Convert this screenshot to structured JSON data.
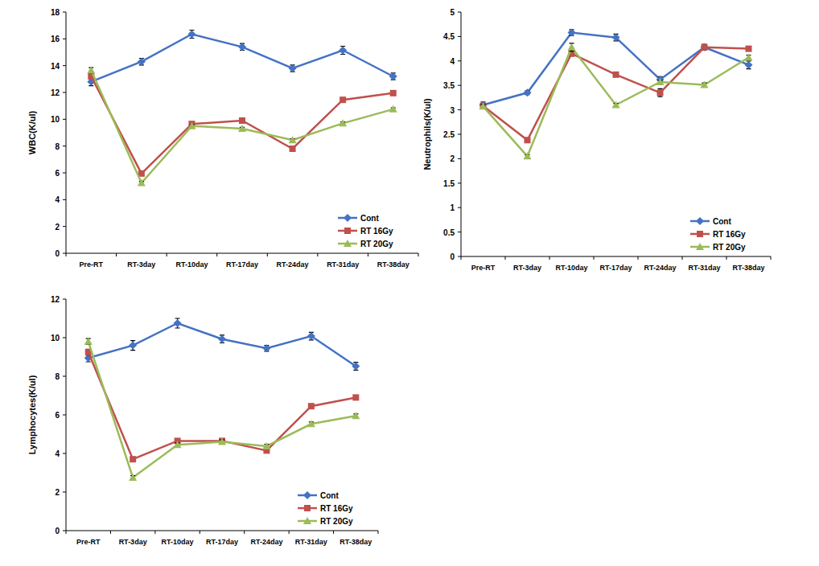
{
  "chart_data": [
    {
      "type": "line",
      "y_label": "WBC(K/ul)",
      "categories": [
        "Pre-RT",
        "RT-3day",
        "RT-10day",
        "RT-17day",
        "RT-24day",
        "RT-31day",
        "RT-38day"
      ],
      "ylim": [
        0,
        18
      ],
      "yticks": [
        0,
        2,
        4,
        6,
        8,
        10,
        12,
        14,
        16,
        18
      ],
      "grid": false,
      "legend": "lower right",
      "series": [
        {
          "name": "Cont",
          "color": "#4472c4",
          "marker": "diamond",
          "values": [
            12.8,
            14.3,
            16.35,
            15.4,
            13.8,
            15.15,
            13.2
          ],
          "errors": [
            0.3,
            0.25,
            0.3,
            0.25,
            0.25,
            0.3,
            0.25
          ]
        },
        {
          "name": "RT 16Gy",
          "color": "#c0504d",
          "marker": "square",
          "values": [
            13.2,
            5.95,
            9.65,
            9.9,
            7.8,
            11.45,
            11.95
          ],
          "errors": [
            0.2,
            0.15,
            0.15,
            0.15,
            0.15,
            0.15,
            0.15
          ]
        },
        {
          "name": "RT 20Gy",
          "color": "#9bbb59",
          "marker": "triangle",
          "values": [
            13.65,
            5.25,
            9.5,
            9.3,
            8.45,
            9.7,
            10.75
          ],
          "errors": [
            0.2,
            0.1,
            0.1,
            0.1,
            0.1,
            0.1,
            0.1
          ]
        }
      ]
    },
    {
      "type": "line",
      "y_label": "Neutrophils(K/ul)",
      "categories": [
        "Pre-RT",
        "RT-3day",
        "RT-10day",
        "RT-17day",
        "RT-24day",
        "RT-31day",
        "RT-38day"
      ],
      "ylim": [
        0,
        5
      ],
      "yticks": [
        0,
        0.5,
        1,
        1.5,
        2,
        2.5,
        3,
        3.5,
        4,
        4.5,
        5
      ],
      "grid": false,
      "legend": "lower right",
      "series": [
        {
          "name": "Cont",
          "color": "#4472c4",
          "marker": "diamond",
          "values": [
            3.1,
            3.35,
            4.58,
            4.48,
            3.62,
            4.28,
            3.92
          ],
          "errors": [
            0.06,
            0.04,
            0.06,
            0.07,
            0.06,
            0.06,
            0.08
          ]
        },
        {
          "name": "RT 16Gy",
          "color": "#c0504d",
          "marker": "square",
          "values": [
            3.08,
            2.38,
            4.15,
            3.72,
            3.35,
            4.28,
            4.25
          ],
          "errors": [
            0.04,
            0.04,
            0.05,
            0.04,
            0.08,
            0.05,
            0.04
          ]
        },
        {
          "name": "RT 20Gy",
          "color": "#9bbb59",
          "marker": "triangle",
          "values": [
            3.07,
            2.05,
            4.28,
            3.1,
            3.57,
            3.51,
            4.07
          ],
          "errors": [
            0.04,
            0.03,
            0.08,
            0.03,
            0.03,
            0.04,
            0.05
          ]
        }
      ]
    },
    {
      "type": "line",
      "y_label": "Lymphocytes(K/ul)",
      "categories": [
        "Pre-RT",
        "RT-3day",
        "RT-10day",
        "RT-17day",
        "RT-24day",
        "RT-31day",
        "RT-38day"
      ],
      "ylim": [
        0,
        12
      ],
      "yticks": [
        0,
        2,
        4,
        6,
        8,
        10,
        12
      ],
      "grid": false,
      "legend": "lower right",
      "series": [
        {
          "name": "Cont",
          "color": "#4472c4",
          "marker": "diamond",
          "values": [
            8.95,
            9.6,
            10.75,
            9.93,
            9.45,
            10.08,
            8.52
          ],
          "errors": [
            0.2,
            0.25,
            0.25,
            0.2,
            0.15,
            0.2,
            0.2
          ]
        },
        {
          "name": "RT 16Gy",
          "color": "#c0504d",
          "marker": "square",
          "values": [
            9.25,
            3.7,
            4.65,
            4.65,
            4.15,
            6.45,
            6.9
          ],
          "errors": [
            0.15,
            0.1,
            0.1,
            0.1,
            0.1,
            0.1,
            0.1
          ]
        },
        {
          "name": "RT 20Gy",
          "color": "#9bbb59",
          "marker": "triangle",
          "values": [
            9.8,
            2.75,
            4.45,
            4.6,
            4.38,
            5.53,
            5.95
          ],
          "errors": [
            0.15,
            0.1,
            0.1,
            0.1,
            0.1,
            0.1,
            0.1
          ]
        }
      ]
    }
  ]
}
